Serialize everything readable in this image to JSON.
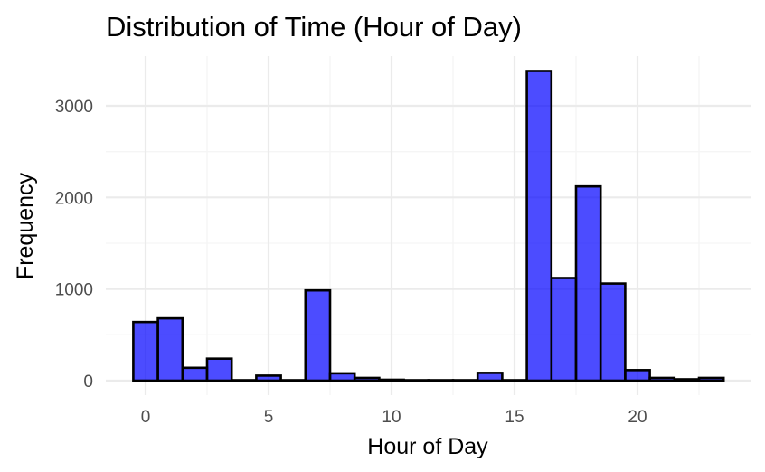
{
  "chart_data": {
    "type": "bar",
    "title": "Distribution of Time (Hour of Day)",
    "xlabel": "Hour of Day",
    "ylabel": "Frequency",
    "x": [
      0,
      1,
      2,
      3,
      4,
      5,
      6,
      7,
      8,
      9,
      10,
      11,
      12,
      13,
      14,
      15,
      16,
      17,
      18,
      19,
      20,
      21,
      22,
      23
    ],
    "values": [
      640,
      680,
      140,
      240,
      5,
      55,
      5,
      985,
      80,
      30,
      10,
      5,
      5,
      5,
      85,
      5,
      3380,
      1120,
      2120,
      1060,
      115,
      30,
      15,
      30
    ],
    "bin_width": 1,
    "xlim": [
      -0.5,
      23.5
    ],
    "ylim": [
      0,
      3400
    ],
    "x_ticks": [
      0,
      5,
      10,
      15,
      20
    ],
    "x_tick_labels": [
      "0",
      "5",
      "10",
      "15",
      "20"
    ],
    "y_ticks": [
      0,
      1000,
      2000,
      3000
    ],
    "y_tick_labels": [
      "0",
      "1000",
      "2000",
      "3000"
    ],
    "grid": true,
    "legend": "none",
    "colors": {
      "bar_fill": "#0000ff",
      "bar_fill_opacity": 0.7,
      "bar_outline": "#000000",
      "grid_major": "#ebebeb",
      "grid_minor": "#f5f5f5",
      "background": "#ffffff"
    }
  }
}
